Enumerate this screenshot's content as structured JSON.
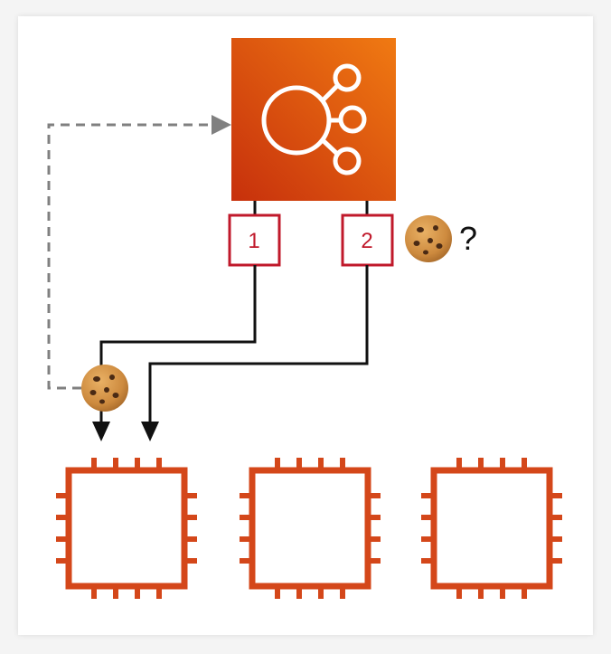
{
  "load_balancer": {
    "icon": "elastic-load-balancing-icon",
    "color_light": "#ea6a10",
    "color_dark": "#c8330c"
  },
  "targets": [
    {
      "label": "1",
      "color": "#c0192b"
    },
    {
      "label": "2",
      "color": "#c0192b"
    }
  ],
  "cookie": {
    "icon": "cookie-icon",
    "question_mark": "?"
  },
  "instances": [
    {
      "icon": "ec2-instance-chip-icon",
      "color": "#d4471a"
    },
    {
      "icon": "ec2-instance-chip-icon",
      "color": "#d4471a"
    },
    {
      "icon": "ec2-instance-chip-icon",
      "color": "#d4471a"
    }
  ]
}
